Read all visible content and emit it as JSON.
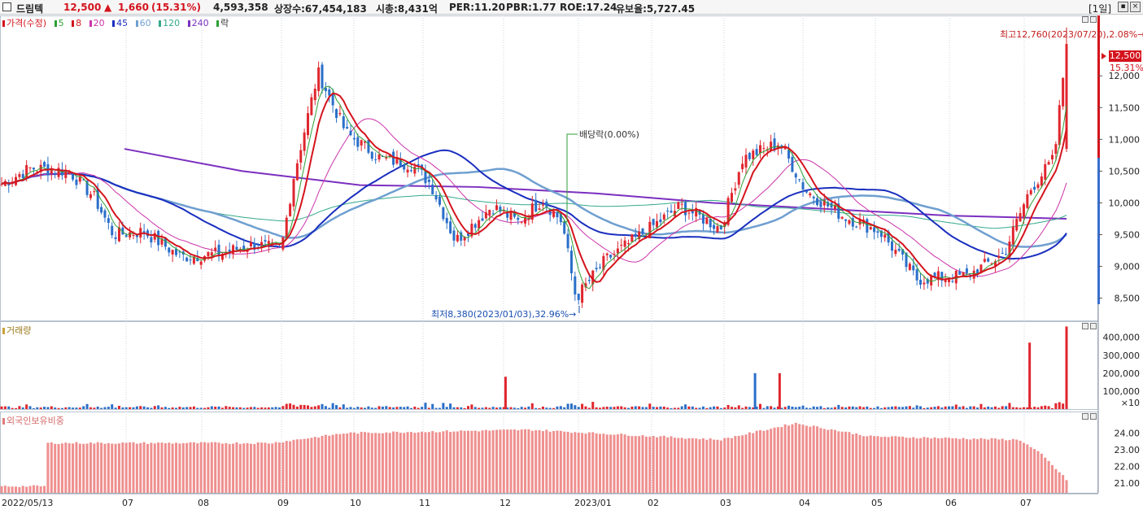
{
  "header": {
    "name": "드림텍",
    "price": "12,500",
    "change_arrow": "▲",
    "change": "1,660",
    "change_pct": "(15.31%)",
    "volume": "4,593,358",
    "listed_shares": "상장수:67,454,183",
    "market_cap": "시총:8,431억",
    "per": "PER:11.20",
    "pbr": "PBR:1.77",
    "roe": "ROE:17.24",
    "float_ratio": "유보율:5,727.45",
    "period": "[1일]"
  },
  "price_panel": {
    "legend": {
      "price": "가격(수정)",
      "ma": [
        "5",
        "8",
        "20",
        "45",
        "60",
        "120",
        "240"
      ],
      "ex": "락"
    },
    "colors": {
      "price": "#d4141d",
      "ma5": "#2e9f35",
      "ma8": "#d4141d",
      "ma20": "#cc33aa",
      "ma45": "#1a2fbf",
      "ma60": "#6f9fd0",
      "ma120": "#33a98a",
      "ma240": "#7b2fbf",
      "up": "#e0262e",
      "down": "#2a6fc9"
    },
    "y_ticks": [
      "12,000",
      "11,500",
      "11,000",
      "10,500",
      "10,000",
      "9,500",
      "9,000",
      "8,500"
    ],
    "y_range": [
      8150,
      12950
    ],
    "current_label": "12,500",
    "current_pct": "15.31%",
    "high_note": "최고12,760(2023/07/20),2.08%→",
    "low_note": "최저8,380(2023/01/03),32.96%→",
    "dividend_note": "배당락(0.00%)"
  },
  "volume_panel": {
    "title": "거래량",
    "y_ticks": [
      "400,000",
      "300,000",
      "200,000",
      "100,000"
    ],
    "unit": "×10"
  },
  "foreign_panel": {
    "title": "외국인보유비중",
    "y_ticks": [
      "24.00",
      "23.00",
      "22.00",
      "21.00"
    ]
  },
  "x_axis": [
    "2022/05/13",
    "07",
    "08",
    "09",
    "10",
    "11",
    "12",
    "2023/01",
    "02",
    "03",
    "04",
    "05",
    "06",
    "07"
  ],
  "chart_data": {
    "type": "candlestick",
    "x_labels": [
      "2022/05/13",
      "07",
      "08",
      "09",
      "10",
      "11",
      "12",
      "2023/01",
      "02",
      "03",
      "04",
      "05",
      "06",
      "07"
    ],
    "close_path": [
      {
        "date": "2022/05/13",
        "close": 10300
      },
      {
        "date": "2022/05/25",
        "close": 10550
      },
      {
        "date": "2022/06/10",
        "close": 10500
      },
      {
        "date": "2022/06/20",
        "close": 10100
      },
      {
        "date": "2022/06/28",
        "close": 9500
      },
      {
        "date": "2022/07/10",
        "close": 9550
      },
      {
        "date": "2022/07/25",
        "close": 9150
      },
      {
        "date": "2022/08/10",
        "close": 9200
      },
      {
        "date": "2022/08/25",
        "close": 9350
      },
      {
        "date": "2022/09/05",
        "close": 9250
      },
      {
        "date": "2022/09/10",
        "close": 10400
      },
      {
        "date": "2022/09/20",
        "close": 12050
      },
      {
        "date": "2022/10/01",
        "close": 11100
      },
      {
        "date": "2022/10/15",
        "close": 10700
      },
      {
        "date": "2022/10/28",
        "close": 10600
      },
      {
        "date": "2022/11/05",
        "close": 10300
      },
      {
        "date": "2022/11/15",
        "close": 9400
      },
      {
        "date": "2022/11/30",
        "close": 9950
      },
      {
        "date": "2022/12/10",
        "close": 9700
      },
      {
        "date": "2022/12/20",
        "close": 10050
      },
      {
        "date": "2022/12/28",
        "close": 9700
      },
      {
        "date": "2023/01/03",
        "close": 8500
      },
      {
        "date": "2023/01/15",
        "close": 9100
      },
      {
        "date": "2023/02/01",
        "close": 9550
      },
      {
        "date": "2023/02/15",
        "close": 9950
      },
      {
        "date": "2023/03/01",
        "close": 9600
      },
      {
        "date": "2023/03/10",
        "close": 10700
      },
      {
        "date": "2023/03/25",
        "close": 10950
      },
      {
        "date": "2023/04/05",
        "close": 10200
      },
      {
        "date": "2023/04/20",
        "close": 9800
      },
      {
        "date": "2023/05/05",
        "close": 9550
      },
      {
        "date": "2023/05/20",
        "close": 8800
      },
      {
        "date": "2023/06/10",
        "close": 8850
      },
      {
        "date": "2023/06/25",
        "close": 9200
      },
      {
        "date": "2023/07/05",
        "close": 10200
      },
      {
        "date": "2023/07/15",
        "close": 10700
      },
      {
        "date": "2023/07/20",
        "close": 12500
      }
    ],
    "ma240_path": [
      10850,
      10500,
      10280,
      10250,
      10150,
      10000,
      9900,
      9800,
      9750
    ],
    "volume_peaks": [
      {
        "date": "2022/12/05",
        "value": 180000
      },
      {
        "date": "2023/03/15",
        "value": 200000
      },
      {
        "date": "2023/03/25",
        "value": 200000
      },
      {
        "date": "2023/07/05",
        "value": 370000
      },
      {
        "date": "2023/07/20",
        "value": 460000
      }
    ],
    "foreign_ratio": [
      {
        "date": "2022/05/13",
        "value": 20.8
      },
      {
        "date": "2022/06/01",
        "value": 23.4
      },
      {
        "date": "2022/09/01",
        "value": 23.4
      },
      {
        "date": "2022/10/01",
        "value": 24.0
      },
      {
        "date": "2022/12/15",
        "value": 24.2
      },
      {
        "date": "2023/03/01",
        "value": 23.6
      },
      {
        "date": "2023/04/01",
        "value": 24.6
      },
      {
        "date": "2023/05/01",
        "value": 23.8
      },
      {
        "date": "2023/07/01",
        "value": 23.6
      },
      {
        "date": "2023/07/10",
        "value": 22.7
      },
      {
        "date": "2023/07/20",
        "value": 21.2
      }
    ]
  }
}
